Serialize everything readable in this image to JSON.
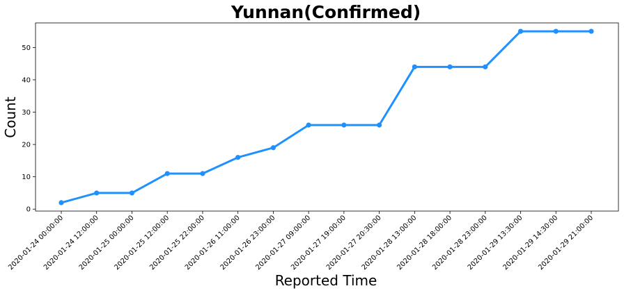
{
  "chart_data": {
    "type": "line",
    "title": "Yunnan(Confirmed)",
    "xlabel": "Reported Time",
    "ylabel": "Count",
    "x": [
      "2020-01-24 00:00:00",
      "2020-01-24 12:00:00",
      "2020-01-25 00:00:00",
      "2020-01-25 12:00:00",
      "2020-01-25 22:00:00",
      "2020-01-26 11:00:00",
      "2020-01-26 23:00:00",
      "2020-01-27 09:00:00",
      "2020-01-27 19:00:00",
      "2020-01-27 20:30:00",
      "2020-01-28 13:00:00",
      "2020-01-28 18:00:00",
      "2020-01-28 23:00:00",
      "2020-01-29 13:30:00",
      "2020-01-29 14:30:00",
      "2020-01-29 21:00:00"
    ],
    "series": [
      {
        "values": [
          2,
          5,
          5,
          11,
          11,
          16,
          19,
          26,
          26,
          26,
          44,
          44,
          44,
          55,
          55,
          55
        ]
      }
    ],
    "yticks": [
      0,
      10,
      20,
      30,
      40,
      50
    ],
    "ylim": [
      -0.6,
      57.6
    ],
    "grid": false,
    "legend": "none",
    "line_color": "#1e90ff"
  }
}
